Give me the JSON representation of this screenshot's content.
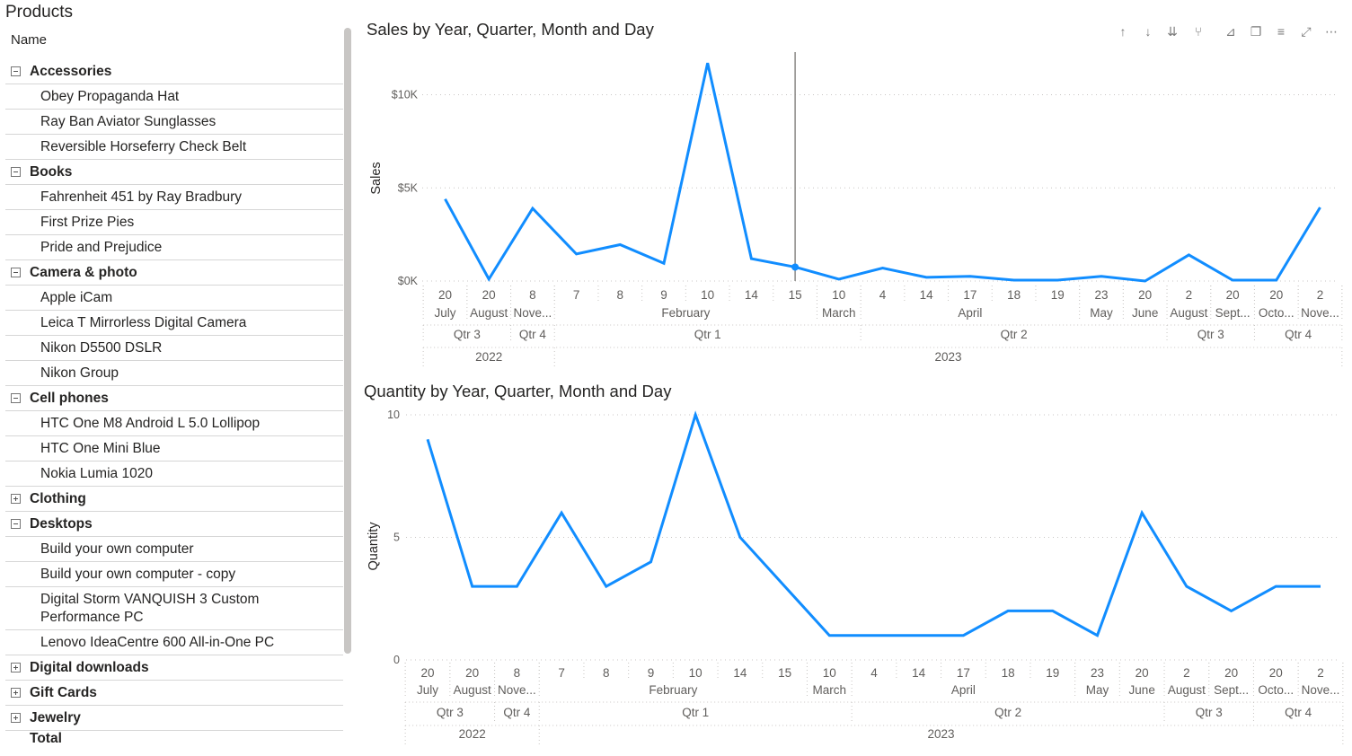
{
  "products": {
    "title": "Products",
    "column_header": "Name",
    "total_label": "Total",
    "categories": [
      {
        "name": "Accessories",
        "expanded": true,
        "items": [
          "Obey Propaganda Hat",
          "Ray Ban Aviator Sunglasses",
          "Reversible Horseferry Check Belt"
        ]
      },
      {
        "name": "Books",
        "expanded": true,
        "items": [
          "Fahrenheit 451 by Ray Bradbury",
          "First Prize Pies",
          "Pride and Prejudice"
        ]
      },
      {
        "name": "Camera & photo",
        "expanded": true,
        "items": [
          "Apple iCam",
          "Leica T Mirrorless Digital Camera",
          "Nikon D5500 DSLR",
          "Nikon Group"
        ]
      },
      {
        "name": "Cell phones",
        "expanded": true,
        "items": [
          "HTC One M8 Android L 5.0 Lollipop",
          "HTC One Mini Blue",
          "Nokia Lumia 1020"
        ]
      },
      {
        "name": "Clothing",
        "expanded": false,
        "items": []
      },
      {
        "name": "Desktops",
        "expanded": true,
        "items": [
          "Build your own computer",
          "Build your own computer - copy",
          "Digital Storm VANQUISH 3 Custom Performance PC",
          "Lenovo IdeaCentre 600 All-in-One PC"
        ]
      },
      {
        "name": "Digital downloads",
        "expanded": false,
        "items": []
      },
      {
        "name": "Gift Cards",
        "expanded": false,
        "items": []
      },
      {
        "name": "Jewelry",
        "expanded": false,
        "items": []
      }
    ]
  },
  "toolbar": {
    "icons": [
      "arrow-up-icon",
      "arrow-down-icon",
      "double-arrow-down-icon",
      "fork-expand-icon",
      "pin-icon",
      "copy-icon",
      "filter-icon",
      "focus-mode-icon",
      "more-options-icon"
    ]
  },
  "colors": {
    "line": "#118DFF",
    "accent_text": "#252423",
    "muted_text": "#605e5c"
  },
  "chart_data": [
    {
      "type": "line",
      "title": "Sales by Year, Quarter, Month and Day",
      "ylabel": "Sales",
      "ylim": [
        0,
        12000
      ],
      "yticks": [
        0,
        5000,
        10000
      ],
      "ytick_labels": [
        "$0K",
        "$5K",
        "$10K"
      ],
      "grid": true,
      "hover_index": 8,
      "x_levels": {
        "day": [
          "20",
          "20",
          "8",
          "7",
          "8",
          "9",
          "10",
          "14",
          "15",
          "10",
          "4",
          "14",
          "17",
          "18",
          "19",
          "23",
          "20",
          "2",
          "20",
          "20",
          "2"
        ],
        "month": [
          {
            "label": "July",
            "start": 0,
            "end": 0
          },
          {
            "label": "August",
            "start": 1,
            "end": 1
          },
          {
            "label": "Nove...",
            "start": 2,
            "end": 2
          },
          {
            "label": "February",
            "start": 3,
            "end": 8
          },
          {
            "label": "March",
            "start": 9,
            "end": 9
          },
          {
            "label": "April",
            "start": 10,
            "end": 14
          },
          {
            "label": "May",
            "start": 15,
            "end": 15
          },
          {
            "label": "June",
            "start": 16,
            "end": 16
          },
          {
            "label": "August",
            "start": 17,
            "end": 17
          },
          {
            "label": "Sept...",
            "start": 18,
            "end": 18
          },
          {
            "label": "Octo...",
            "start": 19,
            "end": 19
          },
          {
            "label": "Nove...",
            "start": 20,
            "end": 20
          }
        ],
        "quarter": [
          {
            "label": "Qtr 3",
            "start": 0,
            "end": 1
          },
          {
            "label": "Qtr 4",
            "start": 2,
            "end": 2
          },
          {
            "label": "Qtr 1",
            "start": 3,
            "end": 9
          },
          {
            "label": "Qtr 2",
            "start": 10,
            "end": 16
          },
          {
            "label": "Qtr 3",
            "start": 17,
            "end": 18
          },
          {
            "label": "Qtr 4",
            "start": 19,
            "end": 20
          }
        ],
        "year": [
          {
            "label": "2022",
            "start": 0,
            "end": 2
          },
          {
            "label": "2023",
            "start": 3,
            "end": 20
          }
        ]
      },
      "series": [
        {
          "values": [
            4400,
            100,
            3900,
            1450,
            1950,
            950,
            11700,
            1200,
            750,
            100,
            700,
            200,
            250,
            50,
            50,
            250,
            0,
            1400,
            50,
            50,
            3950
          ]
        }
      ]
    },
    {
      "type": "line",
      "title": "Quantity by Year, Quarter, Month and Day",
      "ylabel": "Quantity",
      "ylim": [
        0,
        10
      ],
      "yticks": [
        0,
        5,
        10
      ],
      "ytick_labels": [
        "0",
        "5",
        "10"
      ],
      "grid": true,
      "x_levels": {
        "day": [
          "20",
          "20",
          "8",
          "7",
          "8",
          "9",
          "10",
          "14",
          "15",
          "10",
          "4",
          "14",
          "17",
          "18",
          "19",
          "23",
          "20",
          "2",
          "20",
          "20",
          "2"
        ],
        "month": [
          {
            "label": "July",
            "start": 0,
            "end": 0
          },
          {
            "label": "August",
            "start": 1,
            "end": 1
          },
          {
            "label": "Nove...",
            "start": 2,
            "end": 2
          },
          {
            "label": "February",
            "start": 3,
            "end": 8
          },
          {
            "label": "March",
            "start": 9,
            "end": 9
          },
          {
            "label": "April",
            "start": 10,
            "end": 14
          },
          {
            "label": "May",
            "start": 15,
            "end": 15
          },
          {
            "label": "June",
            "start": 16,
            "end": 16
          },
          {
            "label": "August",
            "start": 17,
            "end": 17
          },
          {
            "label": "Sept...",
            "start": 18,
            "end": 18
          },
          {
            "label": "Octo...",
            "start": 19,
            "end": 19
          },
          {
            "label": "Nove...",
            "start": 20,
            "end": 20
          }
        ],
        "quarter": [
          {
            "label": "Qtr 3",
            "start": 0,
            "end": 1
          },
          {
            "label": "Qtr 4",
            "start": 2,
            "end": 2
          },
          {
            "label": "Qtr 1",
            "start": 3,
            "end": 9
          },
          {
            "label": "Qtr 2",
            "start": 10,
            "end": 16
          },
          {
            "label": "Qtr 3",
            "start": 17,
            "end": 18
          },
          {
            "label": "Qtr 4",
            "start": 19,
            "end": 20
          }
        ],
        "year": [
          {
            "label": "2022",
            "start": 0,
            "end": 2
          },
          {
            "label": "2023",
            "start": 3,
            "end": 20
          }
        ]
      },
      "series": [
        {
          "values": [
            9,
            3,
            3,
            6,
            3,
            4,
            10,
            5,
            3,
            1,
            1,
            1,
            1,
            2,
            2,
            1,
            6,
            3,
            2,
            3,
            3
          ]
        }
      ]
    }
  ]
}
